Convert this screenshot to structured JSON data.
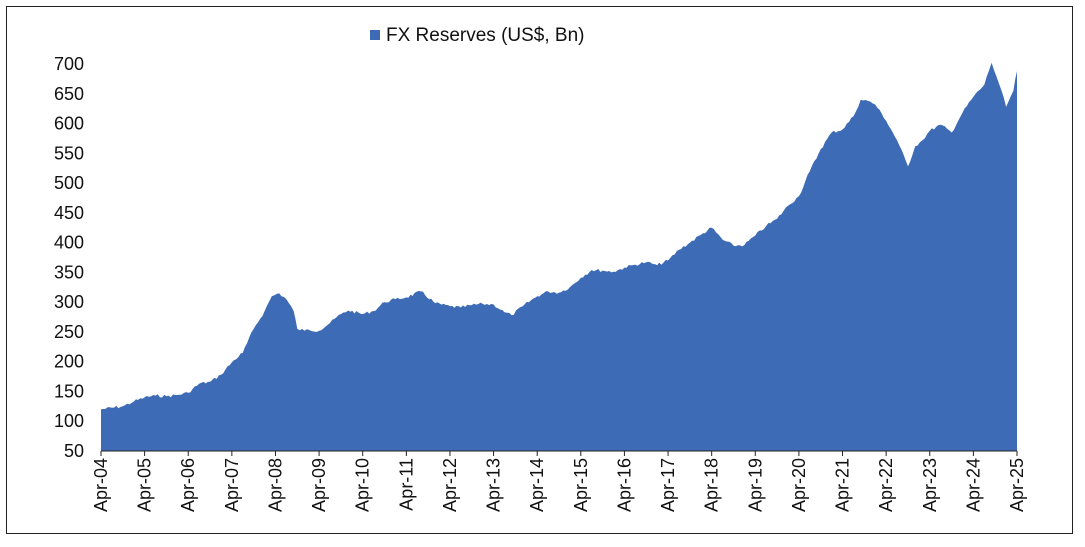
{
  "chart_data": {
    "type": "area",
    "title": "",
    "xlabel": "",
    "ylabel": "",
    "ylim": [
      50,
      700
    ],
    "yticks": [
      50,
      100,
      150,
      200,
      250,
      300,
      350,
      400,
      450,
      500,
      550,
      600,
      650,
      700
    ],
    "xticks": [
      "Apr-04",
      "Apr-05",
      "Apr-06",
      "Apr-07",
      "Apr-08",
      "Apr-09",
      "Apr-10",
      "Apr-11",
      "Apr-12",
      "Apr-13",
      "Apr-14",
      "Apr-15",
      "Apr-16",
      "Apr-17",
      "Apr-18",
      "Apr-19",
      "Apr-20",
      "Apr-21",
      "Apr-22",
      "Apr-23",
      "Apr-24",
      "Apr-25"
    ],
    "legend_position": "top-center",
    "grid": false,
    "series": [
      {
        "name": "FX Reserves (US$, Bn)",
        "color": "#3d6bb5",
        "points": [
          [
            "Apr-04",
            120
          ],
          [
            "Oct-04",
            125
          ],
          [
            "Jan-05",
            133
          ],
          [
            "Apr-05",
            140
          ],
          [
            "Jul-05",
            143
          ],
          [
            "Oct-05",
            142
          ],
          [
            "Jan-06",
            144
          ],
          [
            "Apr-06",
            148
          ],
          [
            "Jul-06",
            163
          ],
          [
            "Oct-06",
            166
          ],
          [
            "Jan-07",
            178
          ],
          [
            "Apr-07",
            199
          ],
          [
            "Jul-07",
            215
          ],
          [
            "Oct-07",
            255
          ],
          [
            "Jan-08",
            285
          ],
          [
            "Mar-08",
            310
          ],
          [
            "May-08",
            315
          ],
          [
            "Jul-08",
            305
          ],
          [
            "Sep-08",
            285
          ],
          [
            "Oct-08",
            255
          ],
          [
            "Dec-08",
            252
          ],
          [
            "Jan-09",
            254
          ],
          [
            "Apr-09",
            252
          ],
          [
            "Jul-09",
            265
          ],
          [
            "Oct-09",
            280
          ],
          [
            "Dec-09",
            286
          ],
          [
            "Apr-10",
            280
          ],
          [
            "Jul-10",
            285
          ],
          [
            "Oct-10",
            300
          ],
          [
            "Jan-11",
            305
          ],
          [
            "Apr-11",
            308
          ],
          [
            "Aug-11",
            318
          ],
          [
            "Dec-11",
            298
          ],
          [
            "Apr-12",
            293
          ],
          [
            "Jul-12",
            291
          ],
          [
            "Oct-12",
            295
          ],
          [
            "Jan-13",
            297
          ],
          [
            "Apr-13",
            296
          ],
          [
            "Jul-13",
            283
          ],
          [
            "Sep-13",
            278
          ],
          [
            "Dec-13",
            293
          ],
          [
            "Apr-14",
            310
          ],
          [
            "Jul-14",
            318
          ],
          [
            "Oct-14",
            316
          ],
          [
            "Jan-15",
            325
          ],
          [
            "Apr-15",
            341
          ],
          [
            "Jul-15",
            354
          ],
          [
            "Oct-15",
            353
          ],
          [
            "Jan-16",
            351
          ],
          [
            "Apr-16",
            358
          ],
          [
            "Jul-16",
            363
          ],
          [
            "Oct-16",
            367
          ],
          [
            "Jan-17",
            362
          ],
          [
            "Apr-17",
            370
          ],
          [
            "Jul-17",
            388
          ],
          [
            "Oct-17",
            400
          ],
          [
            "Jan-18",
            413
          ],
          [
            "Apr-18",
            425
          ],
          [
            "Jul-18",
            405
          ],
          [
            "Oct-18",
            395
          ],
          [
            "Jan-19",
            396
          ],
          [
            "Apr-19",
            412
          ],
          [
            "Jul-19",
            428
          ],
          [
            "Oct-19",
            440
          ],
          [
            "Jan-20",
            462
          ],
          [
            "Apr-20",
            478
          ],
          [
            "Jul-20",
            520
          ],
          [
            "Oct-20",
            557
          ],
          [
            "Jan-21",
            585
          ],
          [
            "Apr-21",
            590
          ],
          [
            "Jul-21",
            612
          ],
          [
            "Sep-21",
            640
          ],
          [
            "Nov-21",
            638
          ],
          [
            "Jan-22",
            632
          ],
          [
            "Apr-22",
            605
          ],
          [
            "Jul-22",
            572
          ],
          [
            "Oct-22",
            528
          ],
          [
            "Dec-22",
            562
          ],
          [
            "Feb-23",
            572
          ],
          [
            "Apr-23",
            588
          ],
          [
            "Jul-23",
            598
          ],
          [
            "Oct-23",
            585
          ],
          [
            "Jan-24",
            618
          ],
          [
            "Apr-24",
            645
          ],
          [
            "Jul-24",
            665
          ],
          [
            "Sep-24",
            702
          ],
          [
            "Nov-24",
            668
          ],
          [
            "Jan-25",
            628
          ],
          [
            "Mar-25",
            655
          ],
          [
            "Apr-25",
            688
          ]
        ]
      }
    ]
  }
}
